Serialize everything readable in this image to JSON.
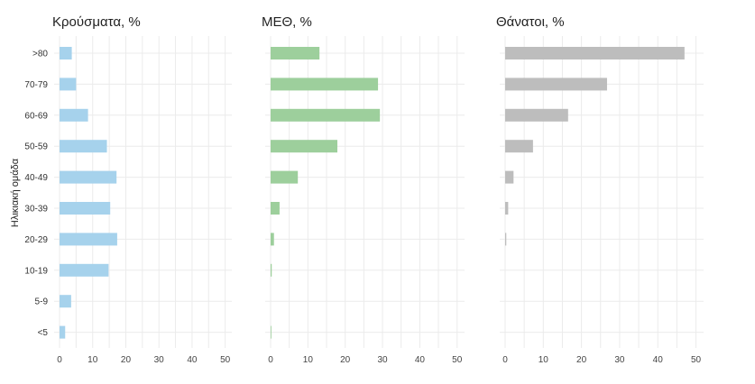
{
  "chart_data": [
    {
      "type": "bar",
      "orientation": "horizontal",
      "title": "Κρούσματα, %",
      "categories": [
        ">80",
        "70-79",
        "60-69",
        "50-59",
        "40-49",
        "30-39",
        "20-29",
        "10-19",
        "5-9",
        "<5"
      ],
      "values": [
        3.7,
        5.0,
        8.6,
        14.3,
        17.2,
        15.3,
        17.4,
        14.8,
        3.5,
        1.7
      ],
      "xlim": [
        0,
        52
      ],
      "xticks": [
        0,
        10,
        20,
        30,
        40,
        50
      ],
      "color": "#a6d2ec",
      "grid": true
    },
    {
      "type": "bar",
      "orientation": "horizontal",
      "title": "ΜΕΘ, %",
      "categories": [
        ">80",
        "70-79",
        "60-69",
        "50-59",
        "40-49",
        "30-39",
        "20-29",
        "10-19",
        "5-9",
        "<5"
      ],
      "values": [
        13.1,
        28.8,
        29.3,
        17.9,
        7.3,
        2.4,
        0.9,
        0.3,
        0.0,
        0.2
      ],
      "xlim": [
        0,
        52
      ],
      "xticks": [
        0,
        10,
        20,
        30,
        40,
        50
      ],
      "color": "#9dcf9c",
      "grid": true
    },
    {
      "type": "bar",
      "orientation": "horizontal",
      "title": "Θάνατοι, %",
      "categories": [
        ">80",
        "70-79",
        "60-69",
        "50-59",
        "40-49",
        "30-39",
        "20-29",
        "10-19",
        "5-9",
        "<5"
      ],
      "values": [
        47.0,
        26.7,
        16.5,
        7.3,
        2.2,
        0.8,
        0.3,
        0.0,
        0.0,
        0.0
      ],
      "xlim": [
        0,
        52
      ],
      "xticks": [
        0,
        10,
        20,
        30,
        40,
        50
      ],
      "color": "#bdbdbd",
      "grid": true
    }
  ],
  "ylabel": "Ηλικιακή ομάδα"
}
